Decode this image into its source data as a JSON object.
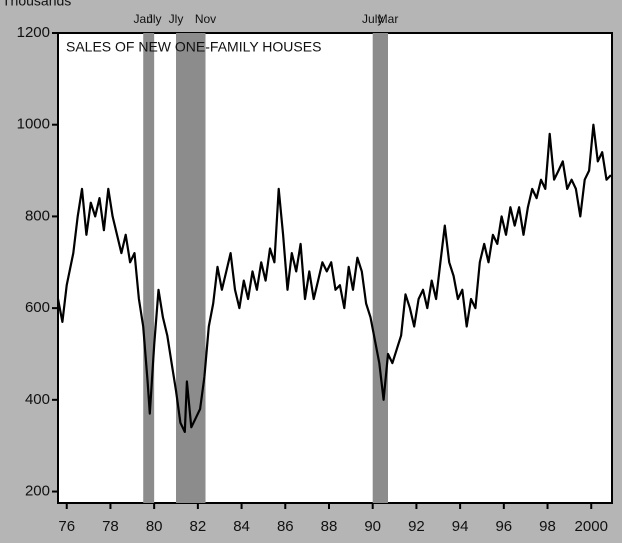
{
  "chart_data": {
    "type": "line",
    "title": "SALES OF NEW ONE-FAMILY HOUSES",
    "y_label": "Thousands",
    "color": "#000000",
    "x": [
      1976.1,
      1976.3,
      1976.5,
      1976.8,
      1977.0,
      1977.2,
      1977.4,
      1977.6,
      1977.8,
      1978.0,
      1978.2,
      1978.4,
      1978.6,
      1978.8,
      1979.0,
      1979.2,
      1979.4,
      1979.6,
      1979.8,
      1980.0,
      1980.2,
      1980.3,
      1980.5,
      1980.7,
      1980.9,
      1981.1,
      1981.3,
      1981.5,
      1981.7,
      1981.9,
      1982.0,
      1982.2,
      1982.4,
      1982.6,
      1982.8,
      1983.0,
      1983.2,
      1983.4,
      1983.6,
      1983.8,
      1984.0,
      1984.2,
      1984.4,
      1984.6,
      1984.8,
      1985.0,
      1985.2,
      1985.4,
      1985.6,
      1985.8,
      1986.0,
      1986.2,
      1986.4,
      1986.6,
      1986.8,
      1987.0,
      1987.2,
      1987.4,
      1987.6,
      1987.8,
      1988.0,
      1988.2,
      1988.4,
      1988.6,
      1988.8,
      1989.0,
      1989.2,
      1989.4,
      1989.6,
      1989.8,
      1990.0,
      1990.2,
      1990.4,
      1990.6,
      1990.8,
      1991.0,
      1991.2,
      1991.4,
      1991.6,
      1991.8,
      1992.0,
      1992.2,
      1992.4,
      1992.6,
      1992.8,
      1993.0,
      1993.2,
      1993.4,
      1993.6,
      1993.8,
      1994.0,
      1994.2,
      1994.4,
      1994.6,
      1994.8,
      1995.0,
      1995.2,
      1995.4,
      1995.6,
      1995.8,
      1996.0,
      1996.2,
      1996.4,
      1996.6,
      1996.8,
      1997.0,
      1997.2,
      1997.4,
      1997.6,
      1997.8,
      1998.0,
      1998.2,
      1998.4,
      1998.6,
      1998.8,
      1999.0,
      1999.2,
      1999.4,
      1999.6,
      1999.8,
      2000.0,
      2000.2,
      2000.4,
      2000.6,
      2000.8,
      2001.0,
      2001.2,
      2001.4
    ],
    "values": [
      620,
      570,
      650,
      720,
      800,
      860,
      760,
      830,
      800,
      840,
      770,
      860,
      800,
      760,
      720,
      760,
      700,
      720,
      620,
      560,
      440,
      370,
      520,
      640,
      580,
      540,
      480,
      420,
      350,
      330,
      440,
      340,
      360,
      380,
      450,
      560,
      610,
      690,
      640,
      680,
      720,
      640,
      600,
      660,
      620,
      680,
      640,
      700,
      660,
      730,
      700,
      860,
      760,
      640,
      720,
      680,
      740,
      620,
      680,
      620,
      660,
      700,
      680,
      700,
      640,
      650,
      600,
      690,
      640,
      710,
      680,
      610,
      580,
      530,
      480,
      400,
      500,
      480,
      510,
      540,
      630,
      600,
      560,
      620,
      640,
      600,
      660,
      620,
      700,
      780,
      700,
      670,
      620,
      640,
      560,
      620,
      600,
      700,
      740,
      700,
      760,
      740,
      800,
      760,
      820,
      780,
      820,
      760,
      820,
      860,
      840,
      880,
      860,
      980,
      880,
      900,
      920,
      860,
      880,
      860,
      800,
      880,
      900,
      1000,
      920,
      940,
      880,
      890
    ],
    "recessions": [
      {
        "start": 1980.0,
        "end": 1980.5,
        "start_label": "Jan",
        "end_label": "Jly"
      },
      {
        "start": 1981.5,
        "end": 1982.85,
        "start_label": "Jly",
        "end_label": "Nov"
      },
      {
        "start": 1990.5,
        "end": 1991.2,
        "start_label": "July",
        "end_label": "Mar"
      }
    ],
    "xlim": [
      1976.1,
      2001.45
    ],
    "ylim": [
      175,
      1200
    ],
    "yticks": [
      200,
      400,
      600,
      800,
      1000,
      1200
    ],
    "xticks": [
      {
        "value": 1976.5,
        "label": "76"
      },
      {
        "value": 1978.5,
        "label": "78"
      },
      {
        "value": 1980.5,
        "label": "80"
      },
      {
        "value": 1982.5,
        "label": "82"
      },
      {
        "value": 1984.5,
        "label": "84"
      },
      {
        "value": 1986.5,
        "label": "86"
      },
      {
        "value": 1988.5,
        "label": "88"
      },
      {
        "value": 1990.5,
        "label": "90"
      },
      {
        "value": 1992.5,
        "label": "92"
      },
      {
        "value": 1994.5,
        "label": "94"
      },
      {
        "value": 1996.5,
        "label": "96"
      },
      {
        "value": 1998.5,
        "label": "98"
      },
      {
        "value": 2000.5,
        "label": "2000"
      }
    ],
    "grid": false
  }
}
